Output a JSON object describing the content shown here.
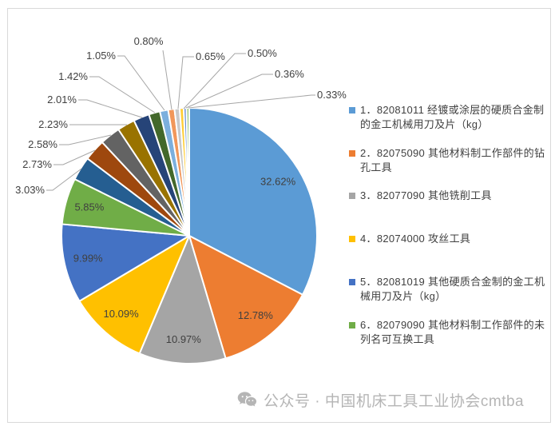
{
  "chart_data": {
    "type": "pie",
    "title": "",
    "start_angle_deg": 0,
    "direction": "clockwise",
    "legend_position": "right",
    "legend_count": 6,
    "slices": [
      {
        "label": "1．82081011 经镀或涂层的硬质合金制的金工机械用刀及片（kg）",
        "value": 32.62,
        "display": "32.62%",
        "color": "#5B9BD5"
      },
      {
        "label": "2．82075090 其他材料制工作部件的钻孔工具",
        "value": 12.78,
        "display": "12.78%",
        "color": "#ED7D31"
      },
      {
        "label": "3．82077090 其他铣削工具",
        "value": 10.97,
        "display": "10.97%",
        "color": "#A5A5A5"
      },
      {
        "label": "4．82074000 攻丝工具",
        "value": 10.09,
        "display": "10.09%",
        "color": "#FFC000"
      },
      {
        "label": "5．82081019 其他硬质合金制的金工机械用刀及片（kg）",
        "value": 9.99,
        "display": "9.99%",
        "color": "#4472C4"
      },
      {
        "label": "6．82079090 其他材料制工作部件的未列名可互换工具",
        "value": 5.85,
        "display": "5.85%",
        "color": "#70AD47"
      },
      {
        "label": "",
        "value": 3.03,
        "display": "3.03%",
        "color": "#255E91"
      },
      {
        "label": "",
        "value": 2.73,
        "display": "2.73%",
        "color": "#9E480E"
      },
      {
        "label": "",
        "value": 2.58,
        "display": "2.58%",
        "color": "#636363"
      },
      {
        "label": "",
        "value": 2.23,
        "display": "2.23%",
        "color": "#997300"
      },
      {
        "label": "",
        "value": 2.01,
        "display": "2.01%",
        "color": "#264478"
      },
      {
        "label": "",
        "value": 1.42,
        "display": "1.42%",
        "color": "#43682B"
      },
      {
        "label": "",
        "value": 1.05,
        "display": "1.05%",
        "color": "#7CAFDD"
      },
      {
        "label": "",
        "value": 0.8,
        "display": "0.80%",
        "color": "#F1975A"
      },
      {
        "label": "",
        "value": 0.65,
        "display": "0.65%",
        "color": "#C9C9C9"
      },
      {
        "label": "",
        "value": 0.5,
        "display": "0.50%",
        "color": "#FFCD33"
      },
      {
        "label": "",
        "value": 0.36,
        "display": "0.36%",
        "color": "#698ED0"
      },
      {
        "label": "",
        "value": 0.33,
        "display": "0.33%",
        "color": "#8CC168"
      }
    ],
    "label_color": "#404040",
    "leader_line_color": "#a6a6a6",
    "slice_border_color": "#ffffff"
  },
  "watermark": {
    "icon": "wechat-icon",
    "text": "公众号 · 中国机床工具工业协会cmtba"
  }
}
